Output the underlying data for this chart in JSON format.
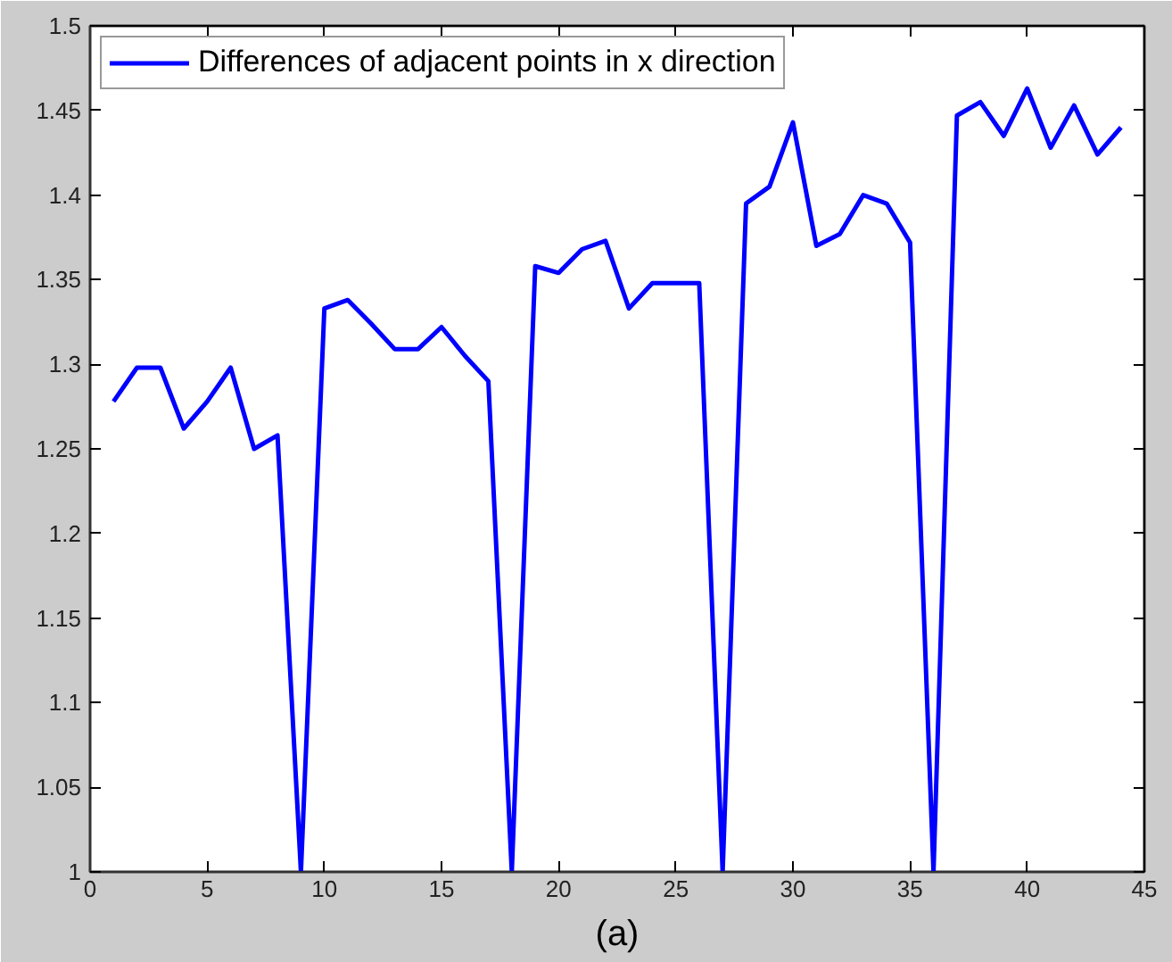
{
  "chart_data": {
    "type": "line",
    "x": [
      1,
      2,
      3,
      4,
      5,
      6,
      7,
      8,
      9,
      10,
      11,
      12,
      13,
      14,
      15,
      16,
      17,
      18,
      19,
      20,
      21,
      22,
      23,
      24,
      25,
      26,
      27,
      28,
      29,
      30,
      31,
      32,
      33,
      34,
      35,
      36,
      37,
      38,
      39,
      40,
      41,
      42,
      43,
      44
    ],
    "series": [
      {
        "name": "Differences of adjacent points in x direction",
        "color": "#0000ff",
        "values": [
          1.278,
          1.298,
          1.298,
          1.262,
          1.278,
          1.298,
          1.25,
          1.258,
          1.0,
          1.333,
          1.338,
          1.324,
          1.309,
          1.309,
          1.322,
          1.305,
          1.29,
          1.0,
          1.358,
          1.354,
          1.368,
          1.373,
          1.333,
          1.348,
          1.348,
          1.348,
          1.0,
          1.395,
          1.405,
          1.443,
          1.37,
          1.377,
          1.4,
          1.395,
          1.372,
          1.0,
          1.447,
          1.455,
          1.435,
          1.463,
          1.428,
          1.453,
          1.424,
          1.44
        ]
      }
    ],
    "xlim": [
      0,
      45
    ],
    "ylim": [
      1,
      1.5
    ],
    "xticks": [
      0,
      5,
      10,
      15,
      20,
      25,
      30,
      35,
      40,
      45
    ],
    "yticks": [
      1,
      1.05,
      1.1,
      1.15,
      1.2,
      1.25,
      1.3,
      1.35,
      1.4,
      1.45,
      1.5
    ],
    "grid": false,
    "legend": "top left",
    "marker": "none",
    "line_style": "solid",
    "annotations": [
      "(a)"
    ]
  }
}
